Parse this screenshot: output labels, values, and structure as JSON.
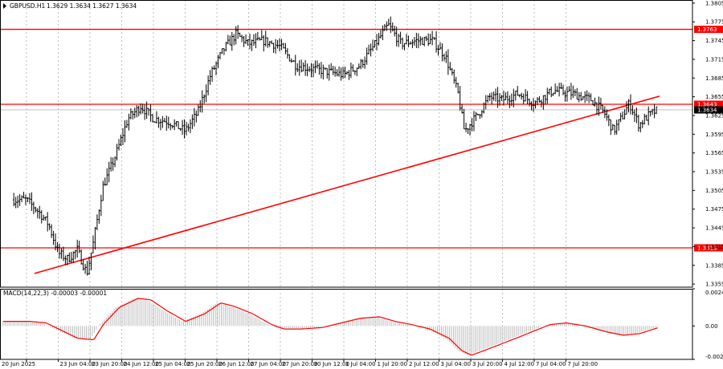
{
  "header": {
    "symbol": "GBPUSD.H1",
    "ohlc": "1.3629 1.3634 1.3627 1.3634"
  },
  "macd": {
    "label": "MACD(14,22,3) -0.00003 -0.00001",
    "y_ticks": [
      "0.00242",
      "0.00",
      "-0.00217"
    ]
  },
  "colors": {
    "background": "#ffffff",
    "bar": "#000000",
    "grid": "#a0a0a0",
    "level_line": "#ff0000",
    "trend_line": "#ff0000",
    "macd_histogram": "#b4b4b4",
    "macd_signal": "#ff0000",
    "price_badge": "#000000"
  },
  "chart_data": {
    "type": "ohlc",
    "symbol": "GBPUSD",
    "timeframe": "H1",
    "price_ticks": [
      "1.3805",
      "1.3775",
      "1.3745",
      "1.3715",
      "1.3685",
      "1.3655",
      "1.3625",
      "1.3595",
      "1.3565",
      "1.3535",
      "1.3505",
      "1.3475",
      "1.3445",
      "1.3415",
      "1.3385",
      "1.3355"
    ],
    "x_ticks": [
      "20 Jun 2025",
      "23 Jun 04:00",
      "23 Jun 20:00",
      "24 Jun 12:00",
      "25 Jun 04:00",
      "25 Jun 20:00",
      "26 Jun 12:00",
      "27 Jun 04:00",
      "27 Jun 20:00",
      "30 Jun 12:00",
      "1 Jul 04:00",
      "1 Jul 20:00",
      "2 Jul 12:00",
      "3 Jul 04:00",
      "3 Jul 20:00",
      "4 Jul 12:00",
      "7 Jul 04:00",
      "7 Jul 20:00"
    ],
    "ylim": [
      1.335,
      1.381
    ],
    "levels": [
      {
        "price": 1.3763,
        "label": "1.3763"
      },
      {
        "price": 1.3643,
        "label": "1.3643"
      },
      {
        "price": 1.3413,
        "label": "1.3413"
      }
    ],
    "current_price": {
      "price": 1.3634,
      "label": "1.3634"
    },
    "trend_line": {
      "from": {
        "bar": 0.25,
        "price": 1.3372
      },
      "to": {
        "bar": 19.95,
        "price": 1.3656
      }
    },
    "bars_per_tick": 16,
    "close_path": [
      [
        0,
        1.349
      ],
      [
        0.4,
        1.347
      ],
      [
        0.7,
        1.345
      ],
      [
        1.0,
        1.3405
      ],
      [
        1.3,
        1.3395
      ],
      [
        1.6,
        1.341
      ],
      [
        1.9,
        1.3372
      ],
      [
        2.1,
        1.342
      ],
      [
        2.4,
        1.351
      ],
      [
        2.8,
        1.356
      ],
      [
        3.2,
        1.362
      ],
      [
        3.6,
        1.364
      ],
      [
        4.0,
        1.362
      ],
      [
        4.5,
        1.3615
      ],
      [
        5.0,
        1.36
      ],
      [
        5.4,
        1.363
      ],
      [
        5.8,
        1.369
      ],
      [
        6.2,
        1.373
      ],
      [
        6.6,
        1.3755
      ],
      [
        7.0,
        1.374
      ],
      [
        7.5,
        1.3745
      ],
      [
        8.0,
        1.3735
      ],
      [
        8.5,
        1.3705
      ],
      [
        9.0,
        1.37
      ],
      [
        9.5,
        1.3695
      ],
      [
        10.0,
        1.369
      ],
      [
        10.5,
        1.3705
      ],
      [
        11.0,
        1.374
      ],
      [
        11.4,
        1.377
      ],
      [
        11.8,
        1.374
      ],
      [
        12.3,
        1.3745
      ],
      [
        12.8,
        1.3745
      ],
      [
        13.2,
        1.372
      ],
      [
        13.6,
        1.366
      ],
      [
        13.8,
        1.36
      ],
      [
        14.2,
        1.3625
      ],
      [
        14.6,
        1.3655
      ],
      [
        15.0,
        1.365
      ],
      [
        15.5,
        1.366
      ],
      [
        16.0,
        1.3645
      ],
      [
        16.6,
        1.3665
      ],
      [
        17.2,
        1.366
      ],
      [
        17.8,
        1.365
      ],
      [
        18.2,
        1.363
      ],
      [
        18.5,
        1.36
      ],
      [
        18.8,
        1.3625
      ],
      [
        19.0,
        1.3645
      ],
      [
        19.3,
        1.361
      ],
      [
        19.6,
        1.3625
      ],
      [
        19.9,
        1.3634
      ]
    ],
    "macd_path": [
      [
        0,
        0.0003
      ],
      [
        0.5,
        0.0002
      ],
      [
        1.0,
        -0.0003
      ],
      [
        1.5,
        -0.0008
      ],
      [
        2.0,
        -0.0009
      ],
      [
        2.3,
        0.0001
      ],
      [
        2.8,
        0.0012
      ],
      [
        3.4,
        0.0018
      ],
      [
        3.8,
        0.0017
      ],
      [
        4.3,
        0.001
      ],
      [
        4.9,
        0.0003
      ],
      [
        5.5,
        0.0008
      ],
      [
        6.0,
        0.0015
      ],
      [
        6.4,
        0.0013
      ],
      [
        7.0,
        0.0008
      ],
      [
        7.6,
        0.0001
      ],
      [
        8.0,
        -0.0002
      ],
      [
        8.5,
        -0.0002
      ],
      [
        9.2,
        -0.0001
      ],
      [
        9.8,
        0.0002
      ],
      [
        10.4,
        0.0005
      ],
      [
        11.0,
        0.0006
      ],
      [
        11.5,
        0.0003
      ],
      [
        12.0,
        0.0001
      ],
      [
        12.6,
        -0.0002
      ],
      [
        13.2,
        -0.0008
      ],
      [
        13.6,
        -0.0016
      ],
      [
        13.9,
        -0.0019
      ],
      [
        14.3,
        -0.0016
      ],
      [
        14.8,
        -0.0012
      ],
      [
        15.3,
        -0.0008
      ],
      [
        15.9,
        -0.0003
      ],
      [
        16.4,
        0.0001
      ],
      [
        16.9,
        0.0002
      ],
      [
        17.5,
        0.0
      ],
      [
        18.2,
        -0.0004
      ],
      [
        18.7,
        -0.0006
      ],
      [
        19.2,
        -0.0005
      ],
      [
        19.9,
        -3e-05
      ]
    ]
  }
}
